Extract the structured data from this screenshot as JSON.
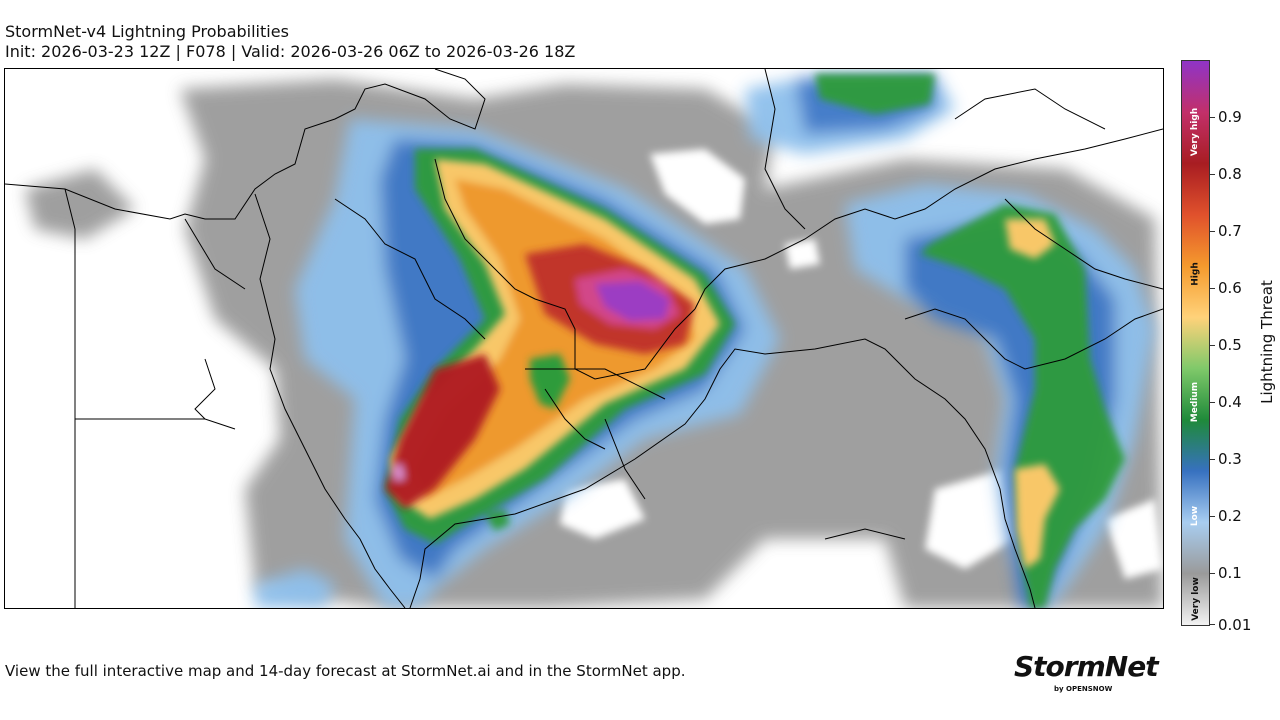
{
  "header": {
    "title": "StormNet-v4 Lightning Probabilities",
    "subtitle": "Init: 2026-03-23 12Z | F078 | Valid: 2026-03-26 06Z to 2026-03-26 18Z"
  },
  "colorbar": {
    "title": "Lightning Threat",
    "ticks": [
      "0.01",
      "0.1",
      "0.2",
      "0.3",
      "0.4",
      "0.5",
      "0.6",
      "0.7",
      "0.8",
      "0.9"
    ],
    "categories": [
      {
        "label": "Very low",
        "from": 0.01,
        "to": 0.1,
        "color": "#8a8a8a"
      },
      {
        "label": "Low",
        "from": 0.1,
        "to": 0.3,
        "color": "#3b74c2"
      },
      {
        "label": "Medium",
        "from": 0.3,
        "to": 0.5,
        "color": "#2f9b3a"
      },
      {
        "label": "High",
        "from": 0.5,
        "to": 0.75,
        "color": "#f3a533"
      },
      {
        "label": "Very high",
        "from": 0.75,
        "to": 1.0,
        "color": "#b3242b"
      }
    ],
    "gradient": [
      "#f2f2f2",
      "#9a9a9a",
      "#a8cdf0",
      "#3771c0",
      "#1f8a3a",
      "#7fc96a",
      "#ffd27a",
      "#f59a2d",
      "#e0512c",
      "#a81d22",
      "#c2306a",
      "#8f34c7"
    ]
  },
  "footer": {
    "text": "View the full interactive map and 14-day forecast at StormNet.ai and in the StormNet app."
  },
  "brand": {
    "name": "StormNet",
    "sub": "by OPENSNOW"
  }
}
